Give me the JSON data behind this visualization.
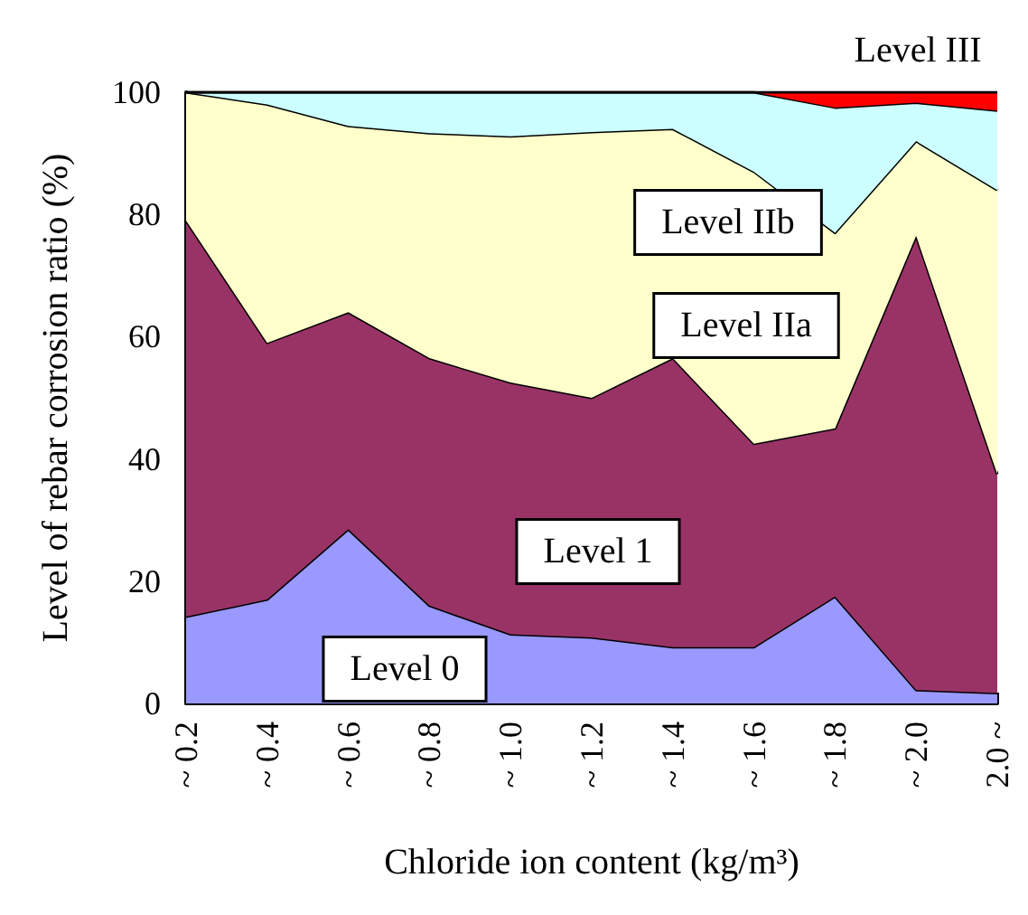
{
  "chart_data": {
    "type": "area",
    "stacked": true,
    "xlabel": "Chloride ion content (kg/m³)",
    "ylabel": "Level of rebar corrosion ratio (%)",
    "categories": [
      "~ 0.2",
      "~ 0.4",
      "~ 0.6",
      "~ 0.8",
      "~ 1.0",
      "~ 1.2",
      "~ 1.4",
      "~ 1.6",
      "~ 1.8",
      "~ 2.0",
      "2.0 ~"
    ],
    "ylim": [
      0,
      100
    ],
    "yticks": [
      0,
      20,
      40,
      60,
      80,
      100
    ],
    "grid": false,
    "legend": false,
    "series": [
      {
        "name": "Level 0",
        "color": "#9999ff",
        "values": [
          14.2,
          17,
          28.5,
          16,
          11.3,
          10.8,
          9.2,
          9.2,
          17.5,
          2.2,
          1.7
        ]
      },
      {
        "name": "Level 1",
        "color": "#993366",
        "values": [
          64.8,
          42,
          35.5,
          40.5,
          41.2,
          39.2,
          47.3,
          33.3,
          27.5,
          74.3,
          35.8
        ]
      },
      {
        "name": "Level IIa",
        "color": "#ffffcc",
        "values": [
          21,
          39,
          30.5,
          36.8,
          40.3,
          43.5,
          37.5,
          44.5,
          32,
          15.5,
          46.5
        ]
      },
      {
        "name": "Level IIb",
        "color": "#ccffff",
        "values": [
          0,
          2,
          5.5,
          6.7,
          7.2,
          6.5,
          6,
          13,
          20.5,
          6.3,
          13
        ]
      },
      {
        "name": "Level III",
        "color": "#ff0000",
        "values": [
          0,
          0,
          0,
          0,
          0,
          0,
          0,
          0,
          2.5,
          1.7,
          3
        ]
      }
    ]
  }
}
